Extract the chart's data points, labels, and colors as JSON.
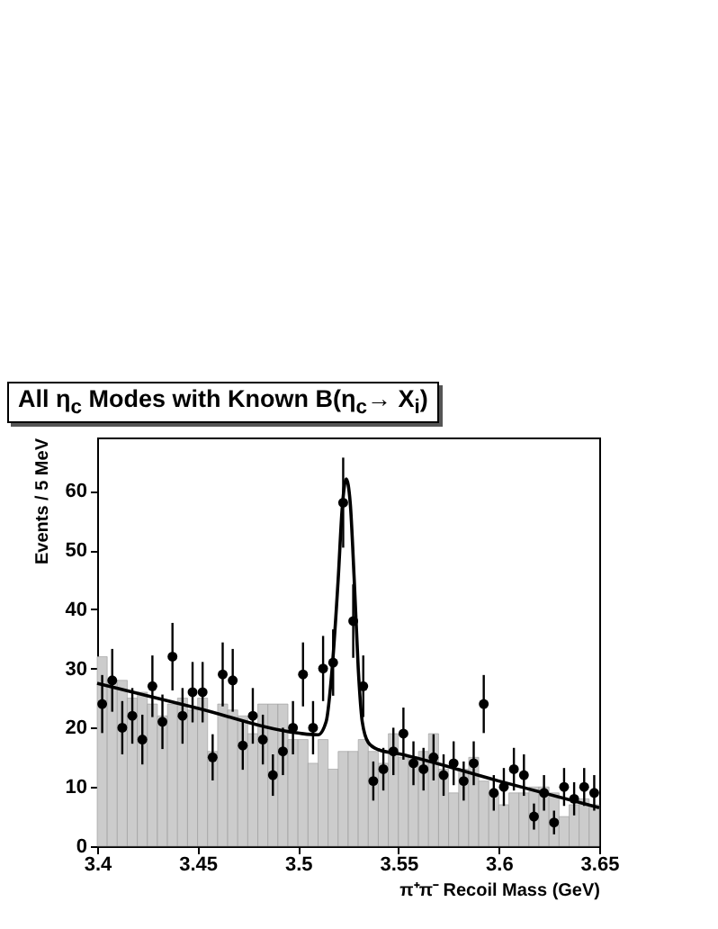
{
  "chart_data": {
    "type": "scatter",
    "title": "All η$_{c}$ Modes with Known B(η$_{c}$→ X$_{i}$)",
    "xlabel": "π⁺π⁻ Recoil Mass  (GeV)",
    "ylabel": "Events / 5 MeV",
    "xlim": [
      3.4,
      3.65
    ],
    "xticks": [
      3.4,
      3.45,
      3.5,
      3.55,
      3.6,
      3.65
    ],
    "ylim": [
      0,
      69
    ],
    "yticks": [
      0,
      10,
      20,
      30,
      40,
      50,
      60
    ],
    "grid": false,
    "series": [
      {
        "type": "histogram",
        "color": "#cccccc",
        "bins": [
          3.4,
          3.405,
          3.41,
          3.415,
          3.42,
          3.425,
          3.43,
          3.435,
          3.44,
          3.445,
          3.45,
          3.455,
          3.46,
          3.465,
          3.47,
          3.475,
          3.48,
          3.485,
          3.49,
          3.495,
          3.5,
          3.505,
          3.51,
          3.515,
          3.52,
          3.525,
          3.53,
          3.535,
          3.54,
          3.545,
          3.55,
          3.555,
          3.56,
          3.565,
          3.57,
          3.575,
          3.58,
          3.585,
          3.59,
          3.595,
          3.6,
          3.605,
          3.61,
          3.615,
          3.62,
          3.625,
          3.63,
          3.635,
          3.64,
          3.645,
          3.65
        ],
        "values": [
          32,
          28,
          28,
          25,
          26,
          24,
          22,
          24,
          25,
          23,
          25,
          16,
          24,
          23,
          22,
          19,
          24,
          24,
          24,
          18,
          18,
          14,
          18,
          13,
          16,
          16,
          18,
          16,
          14,
          19,
          15,
          15,
          16,
          19,
          13,
          9,
          13,
          15,
          11,
          9,
          7,
          9,
          9,
          10,
          10,
          9,
          5,
          7,
          8,
          7
        ]
      },
      {
        "marker": "circle",
        "color": "#000000",
        "x": [
          3.4025,
          3.4075,
          3.4125,
          3.4175,
          3.4225,
          3.4275,
          3.4325,
          3.4375,
          3.4425,
          3.4475,
          3.4525,
          3.4575,
          3.4625,
          3.4675,
          3.4725,
          3.4775,
          3.4825,
          3.4875,
          3.4925,
          3.4975,
          3.5025,
          3.5075,
          3.5125,
          3.5175,
          3.5225,
          3.5275,
          3.5325,
          3.5375,
          3.5425,
          3.5475,
          3.5525,
          3.5575,
          3.5625,
          3.5675,
          3.5725,
          3.5775,
          3.5825,
          3.5875,
          3.5925,
          3.5975,
          3.6025,
          3.6075,
          3.6125,
          3.6175,
          3.6225,
          3.6275,
          3.6325,
          3.6375,
          3.6425,
          3.6475
        ],
        "values": [
          24,
          28,
          20,
          22,
          18,
          27,
          21,
          32,
          22,
          26,
          26,
          15,
          29,
          28,
          17,
          22,
          18,
          12,
          16,
          20,
          29,
          20,
          30,
          31,
          58,
          38,
          27,
          11,
          13,
          16,
          19,
          14,
          13,
          15,
          12,
          14,
          11,
          14,
          24,
          9,
          10,
          13,
          12,
          5,
          9,
          4,
          10,
          8,
          10,
          9
        ],
        "errors": [
          4.9,
          5.3,
          4.5,
          4.7,
          4.2,
          5.2,
          4.6,
          5.7,
          4.7,
          5.1,
          5.1,
          3.9,
          5.4,
          5.3,
          4.1,
          4.7,
          4.2,
          3.5,
          4,
          4.5,
          5.4,
          4.5,
          5.5,
          5.6,
          7.6,
          6.2,
          5.2,
          3.3,
          3.6,
          4,
          4.4,
          3.7,
          3.6,
          3.9,
          3.5,
          3.7,
          3.3,
          3.7,
          4.9,
          3,
          3.2,
          3.6,
          3.5,
          2.2,
          3,
          2,
          3.2,
          2.8,
          3.2,
          3
        ]
      },
      {
        "type": "line",
        "color": "#000000",
        "x": [
          3.4,
          3.45,
          3.5,
          3.51,
          3.514,
          3.517,
          3.52,
          3.522,
          3.524,
          3.526,
          3.528,
          3.53,
          3.532,
          3.535,
          3.54,
          3.55,
          3.6,
          3.65
        ],
        "values": [
          27.5,
          23.3,
          19.1,
          18.8,
          21,
          30,
          45,
          57,
          62,
          58,
          45,
          30,
          21,
          17.5,
          16.3,
          15.6,
          11,
          6.5
        ]
      }
    ]
  }
}
